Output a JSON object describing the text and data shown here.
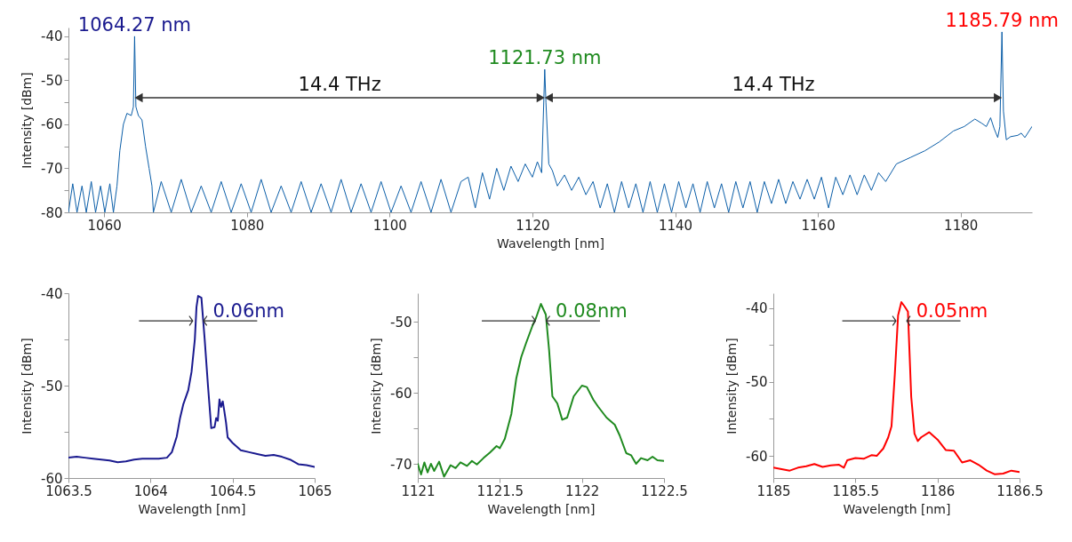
{
  "chart_data": [
    {
      "type": "line",
      "xlabel": "Wavelength [nm]",
      "ylabel": "Intensity [dBm]",
      "xlim": [
        1055,
        1190
      ],
      "ylim": [
        -80,
        -38
      ],
      "xticks": [
        1060,
        1080,
        1100,
        1120,
        1140,
        1160,
        1180
      ],
      "yticks": [
        -80,
        {
          "value": -75,
          "label": null
        },
        -70,
        {
          "value": -65,
          "label": null
        },
        -60,
        {
          "value": -55,
          "label": null
        },
        -50,
        {
          "value": -45,
          "label": null
        },
        -40
      ],
      "annotations": [
        {
          "text": "1064.27 nm",
          "x": 1064.27,
          "y": -40
        },
        {
          "text": "1121.73 nm",
          "x": 1121.73,
          "y": -47.5
        },
        {
          "text": "1185.79 nm",
          "x": 1185.79,
          "y": -39
        },
        "14.4 THz",
        "14.4 THz"
      ],
      "series": [
        {
          "color": "#0b5ea8",
          "x": [
            1055,
            1055.6,
            1056.2,
            1056.9,
            1057.5,
            1058.2,
            1058.8,
            1059.5,
            1060.1,
            1060.8,
            1061.3,
            1061.8,
            1062.2,
            1062.7,
            1063.2,
            1063.8,
            1064.1,
            1064.27,
            1064.45,
            1064.8,
            1065.3,
            1065.8,
            1066.3,
            1066.7,
            1066.9,
            1068,
            1069.4,
            1070.8,
            1072.2,
            1073.6,
            1075,
            1076.4,
            1077.8,
            1079.2,
            1080.6,
            1082,
            1083.4,
            1084.8,
            1086.2,
            1087.6,
            1089,
            1090.4,
            1091.8,
            1093.2,
            1094.6,
            1096,
            1097.4,
            1098.8,
            1100.2,
            1101.6,
            1103,
            1104.4,
            1105.8,
            1107.2,
            1108.6,
            1110,
            1111,
            1112,
            1113,
            1114,
            1115,
            1116,
            1117,
            1118,
            1119,
            1120,
            1120.7,
            1121.3,
            1121.73,
            1121.9,
            1122.3,
            1122.8,
            1123.5,
            1124.5,
            1125.5,
            1126.5,
            1127.5,
            1128.5,
            1129.5,
            1130.5,
            1131.5,
            1132.5,
            1133.5,
            1134.5,
            1135.5,
            1136.5,
            1137.5,
            1138.5,
            1139.5,
            1140.5,
            1141.5,
            1142.5,
            1143.5,
            1144.5,
            1145.5,
            1146.5,
            1147.5,
            1148.5,
            1149.5,
            1150.5,
            1151.5,
            1152.5,
            1153.5,
            1154.5,
            1155.5,
            1156.5,
            1157.5,
            1158.5,
            1159.5,
            1160.5,
            1161.5,
            1162.5,
            1163.5,
            1164.5,
            1165.5,
            1166.5,
            1167.5,
            1168.5,
            1169.5,
            1171,
            1173,
            1175,
            1177,
            1179,
            1180.5,
            1182,
            1183,
            1183.6,
            1184.2,
            1184.7,
            1185.2,
            1185.5,
            1185.79,
            1186,
            1186.4,
            1187,
            1188,
            1188.5,
            1189,
            1190
          ],
          "values": [
            -80,
            -73.5,
            -80,
            -74,
            -80,
            -73,
            -80,
            -74,
            -80,
            -73.5,
            -80,
            -74,
            -66,
            -60,
            -57.5,
            -58,
            -56,
            -40,
            -56,
            -58,
            -59,
            -65,
            -70,
            -74,
            -80,
            -73,
            -80,
            -72.5,
            -80,
            -74,
            -80,
            -73,
            -80,
            -73.5,
            -80,
            -72.5,
            -80,
            -74,
            -80,
            -73,
            -80,
            -73.5,
            -80,
            -72.5,
            -80,
            -73.5,
            -80,
            -73,
            -80,
            -74,
            -80,
            -73,
            -80,
            -72.5,
            -80,
            -73,
            -72,
            -79,
            -71,
            -77,
            -70,
            -75,
            -69.5,
            -73,
            -69,
            -72,
            -68.5,
            -71,
            -47.5,
            -55,
            -69,
            -70.5,
            -74,
            -71.5,
            -75,
            -72,
            -76,
            -73,
            -79,
            -73.5,
            -80,
            -73,
            -79,
            -73.5,
            -80,
            -73,
            -80,
            -73.5,
            -80,
            -73,
            -79,
            -73.5,
            -80,
            -73,
            -79,
            -73.5,
            -80,
            -73,
            -79,
            -73,
            -80,
            -73,
            -78,
            -72.5,
            -78,
            -73,
            -77,
            -72.5,
            -77,
            -72,
            -79,
            -72,
            -76,
            -71.5,
            -76,
            -71.5,
            -75,
            -71,
            -73,
            -69,
            -67.5,
            -66,
            -64,
            -61.5,
            -60.5,
            -58.8,
            -59.8,
            -60.5,
            -58.5,
            -61,
            -63,
            -60.5,
            -39,
            -57,
            -63.5,
            -62.8,
            -62.5,
            -62,
            -63,
            -60.5
          ]
        }
      ]
    },
    {
      "type": "line",
      "xlabel": "Wavelength [nm]",
      "ylabel": "Intensity [dBm]",
      "xlim": [
        1063.5,
        1065
      ],
      "ylim": [
        -60,
        -40
      ],
      "xticks": [
        1063.5,
        1064,
        1064.5,
        1065
      ],
      "yticks": [
        -60,
        {
          "value": -55,
          "label": null
        },
        -50,
        {
          "value": -45,
          "label": null
        },
        -40
      ],
      "annotations": [
        "0.06nm"
      ],
      "series": [
        {
          "color": "#1a1a8f",
          "x": [
            1063.5,
            1063.55,
            1063.6,
            1063.65,
            1063.7,
            1063.75,
            1063.8,
            1063.85,
            1063.9,
            1063.95,
            1064.0,
            1064.05,
            1064.1,
            1064.13,
            1064.16,
            1064.18,
            1064.2,
            1064.23,
            1064.25,
            1064.27,
            1064.28,
            1064.29,
            1064.31,
            1064.33,
            1064.35,
            1064.37,
            1064.39,
            1064.4,
            1064.41,
            1064.42,
            1064.43,
            1064.44,
            1064.45,
            1064.46,
            1064.47,
            1064.5,
            1064.55,
            1064.6,
            1064.65,
            1064.7,
            1064.75,
            1064.8,
            1064.85,
            1064.9,
            1064.95,
            1065
          ],
          "values": [
            -57.8,
            -57.7,
            -57.8,
            -57.9,
            -58.0,
            -58.1,
            -58.3,
            -58.2,
            -58.0,
            -57.9,
            -57.9,
            -57.9,
            -57.8,
            -57.2,
            -55.5,
            -53.5,
            -52.0,
            -50.5,
            -48.5,
            -45.0,
            -41.5,
            -40.3,
            -40.5,
            -45,
            -50,
            -54.6,
            -54.5,
            -53.5,
            -53.8,
            -51.5,
            -52.3,
            -51.7,
            -52.8,
            -54,
            -55.6,
            -56.2,
            -57.0,
            -57.2,
            -57.4,
            -57.6,
            -57.5,
            -57.7,
            -58.0,
            -58.5,
            -58.6,
            -58.8
          ]
        }
      ]
    },
    {
      "type": "line",
      "xlabel": "Wavelength [nm]",
      "ylabel": "Intensity [dBm]",
      "xlim": [
        1121,
        1122.5
      ],
      "ylim": [
        -72,
        -46
      ],
      "xticks": [
        1121,
        1121.5,
        1122,
        1122.5
      ],
      "yticks": [
        -70,
        {
          "value": -65,
          "label": null
        },
        -60,
        {
          "value": -55,
          "label": null
        },
        -50
      ],
      "annotations": [
        "0.08nm"
      ],
      "series": [
        {
          "color": "#1f8a1f",
          "x": [
            1121,
            1121.02,
            1121.04,
            1121.06,
            1121.08,
            1121.1,
            1121.13,
            1121.16,
            1121.2,
            1121.23,
            1121.26,
            1121.3,
            1121.33,
            1121.36,
            1121.4,
            1121.44,
            1121.48,
            1121.5,
            1121.53,
            1121.57,
            1121.6,
            1121.63,
            1121.66,
            1121.7,
            1121.72,
            1121.75,
            1121.78,
            1121.8,
            1121.82,
            1121.85,
            1121.88,
            1121.91,
            1121.95,
            1122.0,
            1122.03,
            1122.07,
            1122.1,
            1122.15,
            1122.2,
            1122.23,
            1122.27,
            1122.3,
            1122.33,
            1122.36,
            1122.4,
            1122.43,
            1122.46,
            1122.5
          ],
          "values": [
            -70,
            -71.5,
            -69.8,
            -71.2,
            -70,
            -71,
            -69.7,
            -71.8,
            -70.2,
            -70.6,
            -69.8,
            -70.3,
            -69.6,
            -70.1,
            -69.2,
            -68.4,
            -67.5,
            -67.8,
            -66.5,
            -63,
            -58,
            -55,
            -53,
            -50.5,
            -49.5,
            -47.5,
            -49,
            -54,
            -60.5,
            -61.5,
            -63.8,
            -63.5,
            -60.5,
            -59,
            -59.2,
            -61,
            -62,
            -63.5,
            -64.5,
            -66,
            -68.5,
            -68.8,
            -70,
            -69.2,
            -69.5,
            -69,
            -69.5,
            -69.6
          ]
        }
      ]
    },
    {
      "type": "line",
      "xlabel": "Wavelength [nm]",
      "ylabel": "Intensity [dBm]",
      "xlim": [
        1185,
        1186.5
      ],
      "ylim": [
        -63,
        -38
      ],
      "xticks": [
        1185,
        1185.5,
        1186,
        1186.5
      ],
      "yticks": [
        -60,
        {
          "value": -55,
          "label": null
        },
        -50,
        {
          "value": -45,
          "label": null
        },
        -40
      ],
      "annotations": [
        "0.05nm"
      ],
      "series": [
        {
          "color": "#ff0000",
          "x": [
            1185,
            1185.05,
            1185.1,
            1185.15,
            1185.2,
            1185.25,
            1185.3,
            1185.35,
            1185.4,
            1185.43,
            1185.45,
            1185.5,
            1185.55,
            1185.6,
            1185.63,
            1185.67,
            1185.7,
            1185.72,
            1185.74,
            1185.76,
            1185.78,
            1185.8,
            1185.82,
            1185.84,
            1185.86,
            1185.88,
            1185.9,
            1185.95,
            1186,
            1186.05,
            1186.1,
            1186.15,
            1186.2,
            1186.25,
            1186.3,
            1186.35,
            1186.4,
            1186.45,
            1186.5
          ],
          "values": [
            -61.6,
            -61.8,
            -62.0,
            -61.6,
            -61.4,
            -61.1,
            -61.5,
            -61.3,
            -61.2,
            -61.6,
            -60.6,
            -60.3,
            -60.4,
            -59.9,
            -60,
            -59,
            -57.5,
            -56,
            -49,
            -41,
            -39.2,
            -39.8,
            -40.5,
            -52,
            -57,
            -58,
            -57.5,
            -56.8,
            -57.8,
            -59.2,
            -59.3,
            -60.9,
            -60.6,
            -61.2,
            -62,
            -62.5,
            -62.4,
            -62,
            -62.2
          ]
        }
      ]
    }
  ]
}
